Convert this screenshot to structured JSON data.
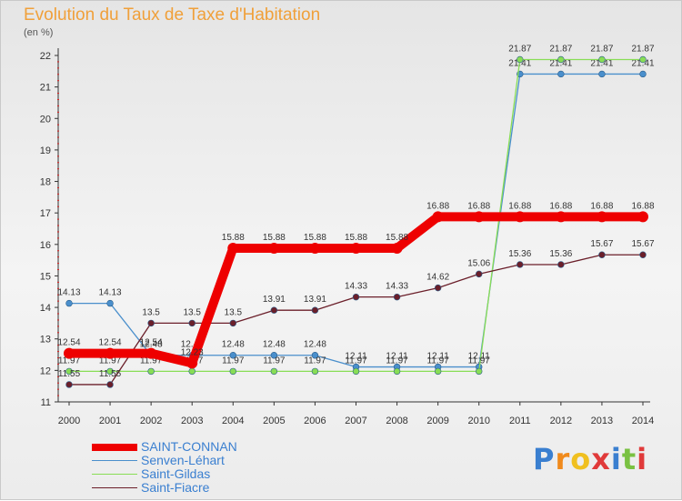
{
  "chart_data": {
    "type": "line",
    "title": "Evolution du Taux de Taxe d'Habitation",
    "subtitle": "(en %)",
    "x": [
      "2000",
      "2001",
      "2002",
      "2003",
      "2004",
      "2005",
      "2006",
      "2007",
      "2008",
      "2009",
      "2010",
      "2011",
      "2012",
      "2013",
      "2014"
    ],
    "ylim": [
      11,
      22
    ],
    "yticks": [
      "11",
      "12",
      "13",
      "14",
      "15",
      "16",
      "17",
      "18",
      "19",
      "20",
      "21",
      "22"
    ],
    "grid": false,
    "legend_position": "bottom-left",
    "series": [
      {
        "name": "SAINT-CONNAN",
        "color": "#ee0000",
        "values": [
          12.54,
          12.54,
          12.54,
          12.23,
          15.88,
          15.88,
          15.88,
          15.88,
          15.88,
          16.88,
          16.88,
          16.88,
          16.88,
          16.88,
          16.88
        ],
        "labels": [
          "12.54",
          "12.54",
          "12.54",
          "12.23",
          "15.88",
          "15.88",
          "15.88",
          "15.88",
          "15.88",
          "16.88",
          "16.88",
          "16.88",
          "16.88",
          "16.88",
          "16.88"
        ]
      },
      {
        "name": "Senven-Léhart",
        "color": "#4a8fcc",
        "values": [
          14.13,
          14.13,
          12.48,
          12.48,
          12.48,
          12.48,
          12.48,
          12.11,
          12.11,
          12.11,
          12.11,
          21.41,
          21.41,
          21.41,
          21.41
        ],
        "labels": [
          "14.13",
          "14.13",
          "12.48",
          "12.48",
          "12.48",
          "12.48",
          "12.48",
          "12.11",
          "12.11",
          "12.11",
          "12.11",
          "21.41",
          "21.41",
          "21.41",
          "21.41"
        ]
      },
      {
        "name": "Saint-Gildas",
        "color": "#88dd55",
        "values": [
          11.97,
          11.97,
          11.97,
          11.97,
          11.97,
          11.97,
          11.97,
          11.97,
          11.97,
          11.97,
          11.97,
          21.87,
          21.87,
          21.87,
          21.87
        ],
        "labels": [
          "11.97",
          "11.97",
          "11.97",
          "11.97",
          "11.97",
          "11.97",
          "11.97",
          "11.97",
          "11.97",
          "11.97",
          "11.97",
          "21.87",
          "21.87",
          "21.87",
          "21.87"
        ]
      },
      {
        "name": "Saint-Fiacre",
        "color": "#6b1f2a",
        "values": [
          11.55,
          11.55,
          13.5,
          13.5,
          13.5,
          13.91,
          13.91,
          14.33,
          14.33,
          14.62,
          15.06,
          15.36,
          15.36,
          15.67,
          15.67
        ],
        "labels": [
          "11.55",
          "11.55",
          "13.5",
          "13.5",
          "13.5",
          "13.91",
          "13.91",
          "14.33",
          "14.33",
          "14.62",
          "15.06",
          "15.36",
          "15.36",
          "15.67",
          "15.67"
        ]
      }
    ]
  },
  "logo": {
    "letters": [
      "P",
      "r",
      "o",
      "x",
      "i",
      "t",
      "i"
    ],
    "colors": [
      "#3a7fd0",
      "#f08a1c",
      "#f0c020",
      "#e03a3a",
      "#3a7fd0",
      "#7ac142",
      "#e03a3a"
    ]
  }
}
